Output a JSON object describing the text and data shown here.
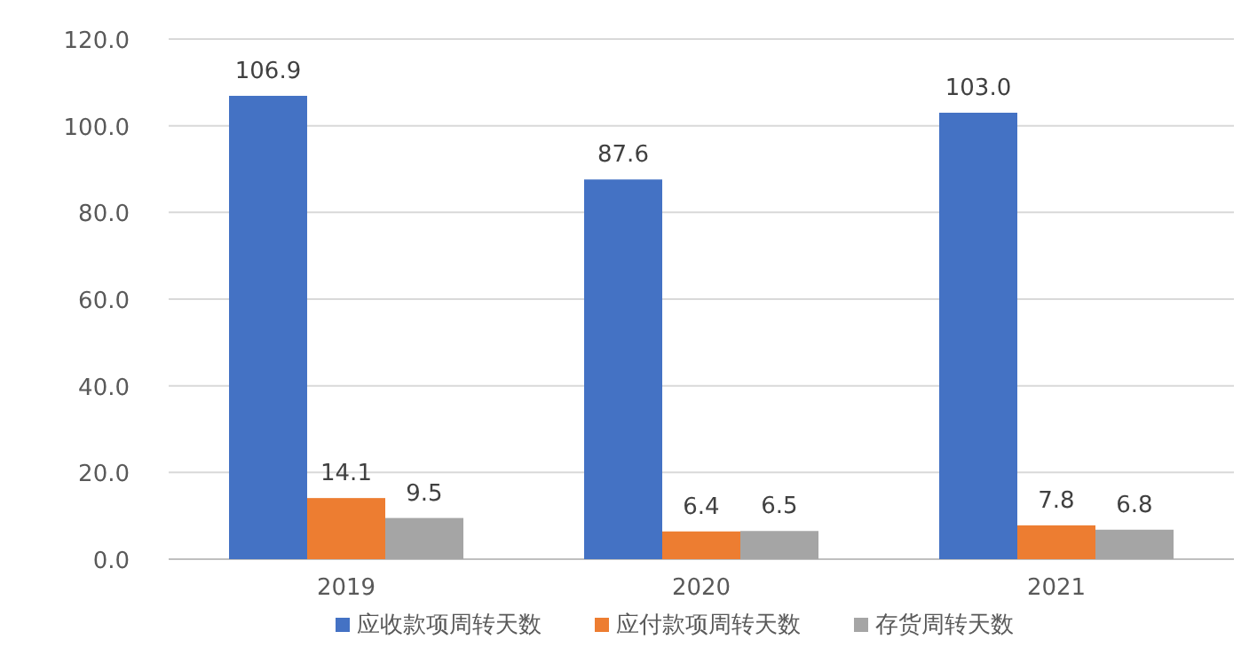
{
  "chart_data": {
    "type": "bar",
    "categories": [
      "2019",
      "2020",
      "2021"
    ],
    "series": [
      {
        "name": "应收款项周转天数",
        "color": "#4472c4",
        "values": [
          106.9,
          87.6,
          103.0
        ],
        "value_labels": [
          "106.9",
          "87.6",
          "103.0"
        ]
      },
      {
        "name": "应付款项周转天数",
        "color": "#ed7d31",
        "values": [
          14.1,
          6.4,
          7.8
        ],
        "value_labels": [
          "14.1",
          "6.4",
          "7.8"
        ]
      },
      {
        "name": "存货周转天数",
        "color": "#a5a5a5",
        "values": [
          9.5,
          6.5,
          6.8
        ],
        "value_labels": [
          "9.5",
          "6.5",
          "6.8"
        ]
      }
    ],
    "ylim": [
      0,
      120
    ],
    "yticks": [
      {
        "value": 0,
        "label": "0.0"
      },
      {
        "value": 20,
        "label": "20.0"
      },
      {
        "value": 40,
        "label": "40.0"
      },
      {
        "value": 60,
        "label": "60.0"
      },
      {
        "value": 80,
        "label": "80.0"
      },
      {
        "value": 100,
        "label": "100.0"
      },
      {
        "value": 120,
        "label": "120.0"
      }
    ],
    "grid": "y",
    "legend": "bottom"
  }
}
